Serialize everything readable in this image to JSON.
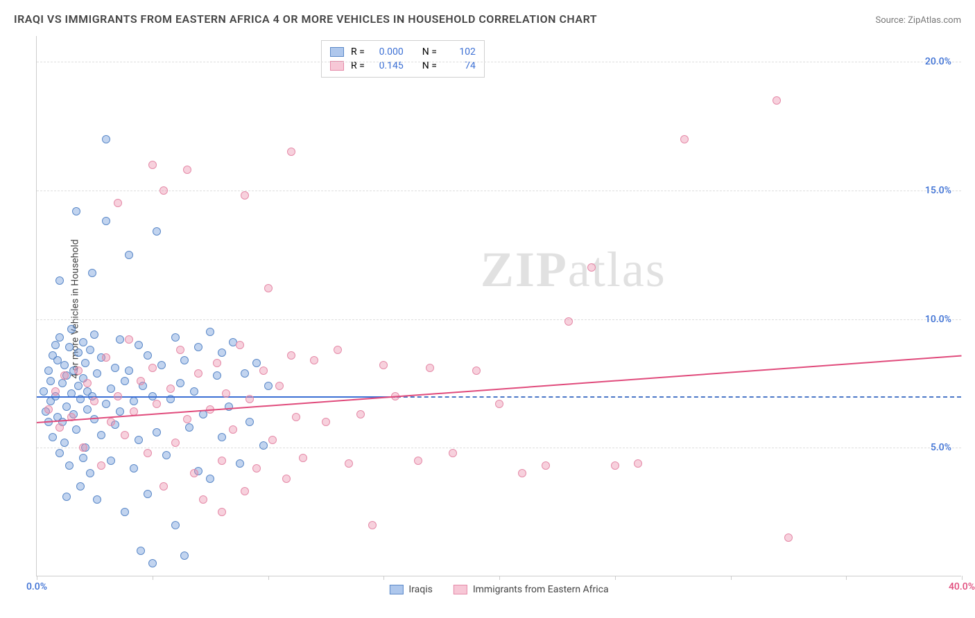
{
  "title": "IRAQI VS IMMIGRANTS FROM EASTERN AFRICA 4 OR MORE VEHICLES IN HOUSEHOLD CORRELATION CHART",
  "source": "Source: ZipAtlas.com",
  "ylabel": "4 or more Vehicles in Household",
  "watermark": {
    "bold": "ZIP",
    "light": "atlas"
  },
  "chart": {
    "type": "scatter",
    "xlim": [
      0,
      40
    ],
    "ylim": [
      0,
      21
    ],
    "x_ticks": [
      0,
      5,
      10,
      15,
      20,
      25,
      30,
      35,
      40
    ],
    "x_tick_labels": {
      "0": "0.0%",
      "40": "40.0%"
    },
    "y_ticks": [
      5,
      10,
      15,
      20
    ],
    "y_tick_labels": {
      "5": "5.0%",
      "10": "10.0%",
      "15": "15.0%",
      "20": "20.0%"
    },
    "grid_color": "#dddddd",
    "axis_color": "#cccccc",
    "background_color": "#ffffff",
    "tick_label_color": "#3b6fd4",
    "x_tick_label_colors": {
      "0": "#3b6fd4",
      "40": "#e04a7b"
    },
    "dashed_reference": {
      "y": 7.0,
      "color": "#4a76c7"
    },
    "point_radius": 6,
    "point_border_width": 1
  },
  "series": [
    {
      "id": "iraqis",
      "label": "Iraqis",
      "fill_color": "rgba(120,160,220,0.45)",
      "border_color": "#5a88c8",
      "swatch_fill": "#aec7ec",
      "swatch_border": "#5a88c8",
      "R_label": "R =",
      "R_value": "0.000",
      "N_label": "N =",
      "N_value": "102",
      "trend": {
        "x1": 0,
        "y1": 7.0,
        "x2": 15.5,
        "y2": 7.0,
        "color": "#3b6fd4",
        "width": 2
      },
      "points": [
        [
          0.3,
          7.2
        ],
        [
          0.4,
          6.4
        ],
        [
          0.5,
          8.0
        ],
        [
          0.5,
          6.0
        ],
        [
          0.6,
          7.6
        ],
        [
          0.6,
          6.8
        ],
        [
          0.7,
          8.6
        ],
        [
          0.7,
          5.4
        ],
        [
          0.8,
          9.0
        ],
        [
          0.8,
          7.0
        ],
        [
          0.9,
          6.2
        ],
        [
          0.9,
          8.4
        ],
        [
          1.0,
          4.8
        ],
        [
          1.0,
          9.3
        ],
        [
          1.1,
          7.5
        ],
        [
          1.1,
          6.0
        ],
        [
          1.2,
          8.2
        ],
        [
          1.2,
          5.2
        ],
        [
          1.3,
          7.8
        ],
        [
          1.3,
          6.6
        ],
        [
          1.4,
          8.9
        ],
        [
          1.4,
          4.3
        ],
        [
          1.5,
          7.1
        ],
        [
          1.5,
          9.6
        ],
        [
          1.6,
          6.3
        ],
        [
          1.6,
          8.0
        ],
        [
          1.7,
          14.2
        ],
        [
          1.7,
          5.7
        ],
        [
          1.8,
          7.4
        ],
        [
          1.8,
          8.7
        ],
        [
          1.9,
          3.5
        ],
        [
          1.9,
          6.9
        ],
        [
          2.0,
          9.1
        ],
        [
          2.0,
          7.7
        ],
        [
          2.1,
          5.0
        ],
        [
          2.1,
          8.3
        ],
        [
          2.2,
          6.5
        ],
        [
          2.2,
          7.2
        ],
        [
          2.3,
          4.0
        ],
        [
          2.3,
          8.8
        ],
        [
          2.4,
          11.8
        ],
        [
          2.4,
          7.0
        ],
        [
          2.5,
          6.1
        ],
        [
          2.5,
          9.4
        ],
        [
          2.6,
          3.0
        ],
        [
          2.6,
          7.9
        ],
        [
          2.8,
          5.5
        ],
        [
          2.8,
          8.5
        ],
        [
          3.0,
          17.0
        ],
        [
          3.0,
          6.7
        ],
        [
          3.0,
          13.8
        ],
        [
          3.2,
          4.5
        ],
        [
          3.2,
          7.3
        ],
        [
          3.4,
          8.1
        ],
        [
          3.4,
          5.9
        ],
        [
          3.6,
          9.2
        ],
        [
          3.6,
          6.4
        ],
        [
          3.8,
          2.5
        ],
        [
          3.8,
          7.6
        ],
        [
          4.0,
          12.5
        ],
        [
          4.0,
          8.0
        ],
        [
          4.2,
          4.2
        ],
        [
          4.2,
          6.8
        ],
        [
          4.4,
          9.0
        ],
        [
          4.4,
          5.3
        ],
        [
          4.6,
          7.4
        ],
        [
          4.8,
          3.2
        ],
        [
          4.8,
          8.6
        ],
        [
          5.0,
          7.0
        ],
        [
          5.2,
          13.4
        ],
        [
          5.2,
          5.6
        ],
        [
          5.4,
          8.2
        ],
        [
          5.6,
          4.7
        ],
        [
          5.8,
          6.9
        ],
        [
          6.0,
          9.3
        ],
        [
          6.0,
          2.0
        ],
        [
          6.2,
          7.5
        ],
        [
          6.4,
          0.8
        ],
        [
          6.4,
          8.4
        ],
        [
          6.6,
          5.8
        ],
        [
          6.8,
          7.2
        ],
        [
          7.0,
          4.1
        ],
        [
          7.0,
          8.9
        ],
        [
          7.2,
          6.3
        ],
        [
          7.5,
          9.5
        ],
        [
          7.5,
          3.8
        ],
        [
          7.8,
          7.8
        ],
        [
          8.0,
          5.4
        ],
        [
          8.0,
          8.7
        ],
        [
          8.3,
          6.6
        ],
        [
          8.5,
          9.1
        ],
        [
          8.8,
          4.4
        ],
        [
          9.0,
          7.9
        ],
        [
          9.2,
          6.0
        ],
        [
          9.5,
          8.3
        ],
        [
          9.8,
          5.1
        ],
        [
          10.0,
          7.4
        ],
        [
          4.5,
          1.0
        ],
        [
          5.0,
          0.5
        ],
        [
          1.0,
          11.5
        ],
        [
          1.3,
          3.1
        ],
        [
          2.0,
          4.6
        ]
      ]
    },
    {
      "id": "eastern_africa",
      "label": "Immigrants from Eastern Africa",
      "fill_color": "rgba(235,140,170,0.40)",
      "border_color": "#e58aa8",
      "swatch_fill": "#f7c7d6",
      "swatch_border": "#e58aa8",
      "R_label": "R =",
      "R_value": "0.145",
      "N_label": "N =",
      "N_value": "74",
      "trend": {
        "x1": 0,
        "y1": 6.0,
        "x2": 40,
        "y2": 8.6,
        "color": "#e04a7b",
        "width": 2
      },
      "points": [
        [
          0.5,
          6.5
        ],
        [
          0.8,
          7.2
        ],
        [
          1.0,
          5.8
        ],
        [
          1.2,
          7.8
        ],
        [
          1.5,
          6.2
        ],
        [
          1.8,
          8.0
        ],
        [
          2.0,
          5.0
        ],
        [
          2.2,
          7.5
        ],
        [
          2.5,
          6.8
        ],
        [
          2.8,
          4.3
        ],
        [
          3.0,
          8.5
        ],
        [
          3.2,
          6.0
        ],
        [
          3.5,
          7.0
        ],
        [
          3.8,
          5.5
        ],
        [
          4.0,
          9.2
        ],
        [
          4.2,
          6.4
        ],
        [
          4.5,
          7.6
        ],
        [
          4.8,
          4.8
        ],
        [
          5.0,
          8.1
        ],
        [
          5.2,
          6.7
        ],
        [
          5.5,
          15.0
        ],
        [
          5.5,
          3.5
        ],
        [
          5.8,
          7.3
        ],
        [
          6.0,
          5.2
        ],
        [
          6.2,
          8.8
        ],
        [
          6.5,
          6.1
        ],
        [
          6.8,
          4.0
        ],
        [
          7.0,
          7.9
        ],
        [
          7.2,
          3.0
        ],
        [
          7.5,
          6.5
        ],
        [
          7.8,
          8.3
        ],
        [
          8.0,
          4.5
        ],
        [
          8.2,
          7.1
        ],
        [
          8.5,
          5.7
        ],
        [
          8.8,
          9.0
        ],
        [
          9.0,
          3.3
        ],
        [
          9.2,
          6.9
        ],
        [
          9.5,
          4.2
        ],
        [
          9.8,
          8.0
        ],
        [
          10.0,
          11.2
        ],
        [
          10.2,
          5.3
        ],
        [
          10.5,
          7.4
        ],
        [
          10.8,
          3.8
        ],
        [
          11.0,
          8.6
        ],
        [
          11.2,
          6.2
        ],
        [
          11.5,
          4.6
        ],
        [
          12.0,
          8.4
        ],
        [
          12.5,
          6.0
        ],
        [
          13.0,
          8.8
        ],
        [
          13.5,
          4.4
        ],
        [
          14.0,
          6.3
        ],
        [
          14.5,
          2.0
        ],
        [
          15.0,
          8.2
        ],
        [
          15.5,
          7.0
        ],
        [
          16.5,
          4.5
        ],
        [
          17.0,
          8.1
        ],
        [
          18.0,
          4.8
        ],
        [
          19.0,
          8.0
        ],
        [
          20.0,
          6.7
        ],
        [
          21.0,
          4.0
        ],
        [
          22.0,
          4.3
        ],
        [
          23.0,
          9.9
        ],
        [
          24.0,
          12.0
        ],
        [
          25.0,
          4.3
        ],
        [
          26.0,
          4.4
        ],
        [
          28.0,
          17.0
        ],
        [
          32.0,
          18.5
        ],
        [
          32.5,
          1.5
        ],
        [
          5.0,
          16.0
        ],
        [
          6.5,
          15.8
        ],
        [
          8.0,
          2.5
        ],
        [
          9.0,
          14.8
        ],
        [
          11.0,
          16.5
        ],
        [
          3.5,
          14.5
        ]
      ]
    }
  ],
  "legend_top": {
    "RN_color": "#3b6fd4"
  },
  "legend_bottom_text_color": "#444444"
}
